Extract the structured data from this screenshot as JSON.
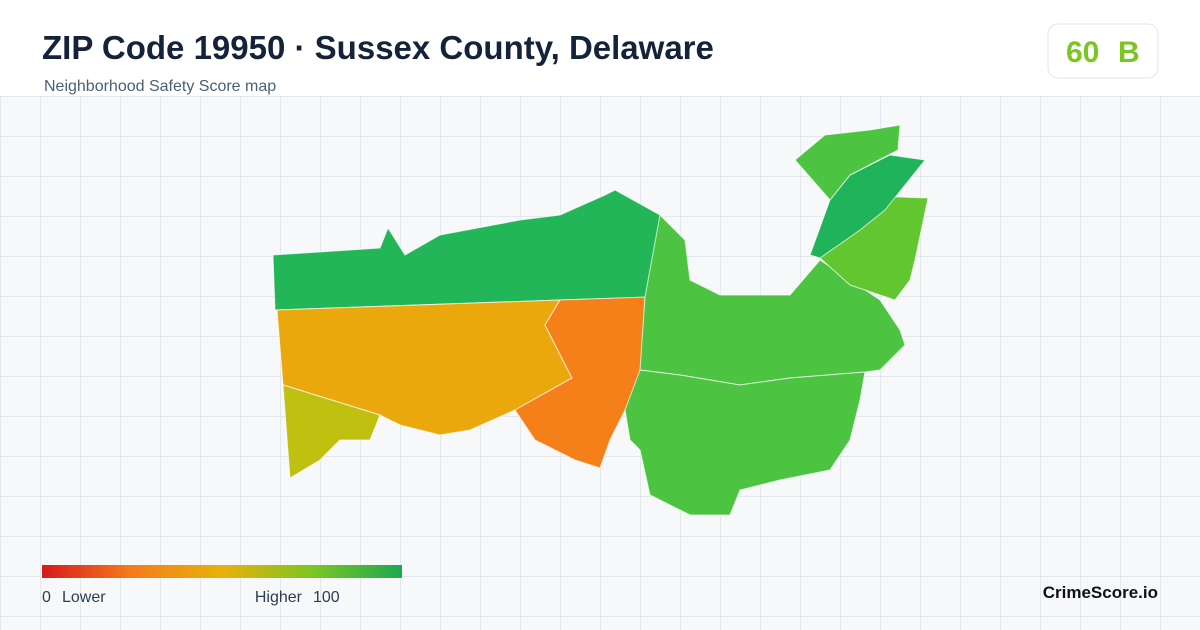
{
  "header": {
    "title": "ZIP Code 19950 · Sussex County, Delaware",
    "subtitle": "Neighborhood Safety Score map"
  },
  "badge": {
    "score": "60",
    "grade": "B"
  },
  "legend": {
    "min": "0",
    "min_label": "Lower",
    "max_label": "Higher",
    "max": "100"
  },
  "footer": {
    "brand": "CrimeScore.io"
  }
}
